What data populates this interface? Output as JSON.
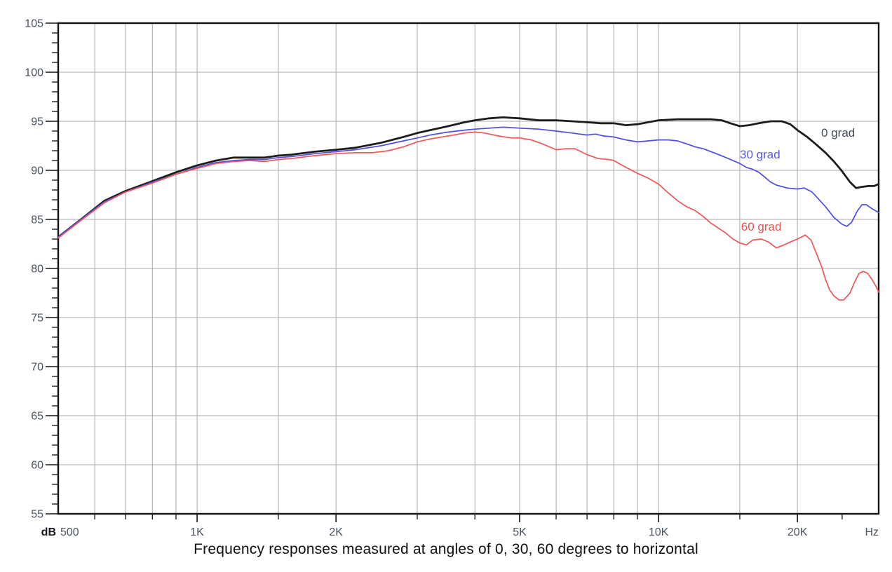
{
  "chart_data": {
    "type": "line",
    "title": "Frequency responses measured at angles of 0, 30, 60 degrees to horizontal",
    "x_axis": {
      "unit": "Hz",
      "scale": "log",
      "min": 500,
      "max": 30000,
      "labeled_ticks": [
        {
          "freq": 500,
          "label": "500"
        },
        {
          "freq": 1000,
          "label": "1K"
        },
        {
          "freq": 2000,
          "label": "2K"
        },
        {
          "freq": 5000,
          "label": "5K"
        },
        {
          "freq": 10000,
          "label": "10K"
        },
        {
          "freq": 20000,
          "label": "20K"
        }
      ],
      "grid_freqs": [
        600,
        700,
        800,
        900,
        1000,
        1500,
        2000,
        3000,
        4000,
        5000,
        6000,
        7000,
        8000,
        9000,
        10000,
        15000,
        20000
      ],
      "tick_only_freqs": [
        600,
        700,
        800,
        900,
        1500,
        3000,
        4000,
        6000,
        7000,
        8000,
        9000,
        15000,
        25000
      ]
    },
    "y_axis": {
      "unit": "dB",
      "min": 55,
      "max": 105,
      "major_step": 5,
      "minor_step": 1,
      "labels": [
        "105",
        "100",
        "95",
        "90",
        "85",
        "80",
        "75",
        "70",
        "65",
        "60",
        "55"
      ]
    },
    "grid": true,
    "legend_position": "inline-labels",
    "colors": {
      "grid": "#a8a8a8",
      "axis": "#121212",
      "tick_label": "#4a525e",
      "caption": "#101010"
    },
    "series": [
      {
        "name": "0 grad",
        "color": "#1c1c1c",
        "label_color": "#434b58",
        "stroke_width": 2.8,
        "label_anchor": {
          "freq": 24500,
          "db": 93.8
        },
        "points": [
          [
            500,
            83.2
          ],
          [
            560,
            85.0
          ],
          [
            630,
            86.9
          ],
          [
            700,
            87.9
          ],
          [
            800,
            88.9
          ],
          [
            900,
            89.8
          ],
          [
            1000,
            90.5
          ],
          [
            1100,
            91.0
          ],
          [
            1200,
            91.3
          ],
          [
            1300,
            91.3
          ],
          [
            1400,
            91.3
          ],
          [
            1500,
            91.5
          ],
          [
            1600,
            91.6
          ],
          [
            1800,
            91.9
          ],
          [
            2000,
            92.1
          ],
          [
            2200,
            92.3
          ],
          [
            2500,
            92.8
          ],
          [
            2800,
            93.4
          ],
          [
            3000,
            93.8
          ],
          [
            3200,
            94.1
          ],
          [
            3500,
            94.5
          ],
          [
            3800,
            94.9
          ],
          [
            4000,
            95.1
          ],
          [
            4300,
            95.3
          ],
          [
            4600,
            95.4
          ],
          [
            5000,
            95.3
          ],
          [
            5500,
            95.1
          ],
          [
            6000,
            95.1
          ],
          [
            6500,
            95.0
          ],
          [
            7000,
            94.9
          ],
          [
            7500,
            94.8
          ],
          [
            8000,
            94.8
          ],
          [
            8500,
            94.6
          ],
          [
            9000,
            94.7
          ],
          [
            9500,
            94.9
          ],
          [
            10000,
            95.1
          ],
          [
            11000,
            95.2
          ],
          [
            12000,
            95.2
          ],
          [
            13000,
            95.2
          ],
          [
            13700,
            95.1
          ],
          [
            14300,
            94.8
          ],
          [
            15000,
            94.5
          ],
          [
            15700,
            94.6
          ],
          [
            16500,
            94.8
          ],
          [
            17500,
            95.0
          ],
          [
            18500,
            95.0
          ],
          [
            19300,
            94.7
          ],
          [
            20000,
            94.1
          ],
          [
            21000,
            93.4
          ],
          [
            22000,
            92.6
          ],
          [
            23000,
            91.8
          ],
          [
            24000,
            90.9
          ],
          [
            25000,
            89.9
          ],
          [
            26000,
            88.8
          ],
          [
            26800,
            88.2
          ],
          [
            27500,
            88.3
          ],
          [
            28500,
            88.4
          ],
          [
            29300,
            88.4
          ],
          [
            30000,
            88.6
          ]
        ]
      },
      {
        "name": "30 grad",
        "color": "#4d4de6",
        "label_color": "#5b5be0",
        "stroke_width": 1.7,
        "label_anchor": {
          "freq": 16600,
          "db": 91.6
        },
        "points": [
          [
            500,
            83.2
          ],
          [
            560,
            85.0
          ],
          [
            630,
            86.8
          ],
          [
            700,
            87.8
          ],
          [
            800,
            88.8
          ],
          [
            900,
            89.6
          ],
          [
            1000,
            90.3
          ],
          [
            1100,
            90.8
          ],
          [
            1200,
            91.0
          ],
          [
            1300,
            91.1
          ],
          [
            1400,
            91.1
          ],
          [
            1500,
            91.3
          ],
          [
            1600,
            91.4
          ],
          [
            1800,
            91.7
          ],
          [
            2000,
            91.9
          ],
          [
            2200,
            92.1
          ],
          [
            2500,
            92.5
          ],
          [
            2800,
            93.0
          ],
          [
            3000,
            93.3
          ],
          [
            3200,
            93.6
          ],
          [
            3500,
            93.9
          ],
          [
            3800,
            94.1
          ],
          [
            4000,
            94.2
          ],
          [
            4300,
            94.3
          ],
          [
            4600,
            94.4
          ],
          [
            5000,
            94.3
          ],
          [
            5500,
            94.2
          ],
          [
            6000,
            94.0
          ],
          [
            6500,
            93.8
          ],
          [
            7000,
            93.6
          ],
          [
            7300,
            93.7
          ],
          [
            7600,
            93.5
          ],
          [
            8000,
            93.4
          ],
          [
            8500,
            93.1
          ],
          [
            9000,
            92.9
          ],
          [
            9500,
            93.0
          ],
          [
            10000,
            93.1
          ],
          [
            10500,
            93.1
          ],
          [
            11000,
            93.0
          ],
          [
            11500,
            92.7
          ],
          [
            12000,
            92.4
          ],
          [
            12500,
            92.2
          ],
          [
            13000,
            91.9
          ],
          [
            13500,
            91.6
          ],
          [
            14000,
            91.3
          ],
          [
            14500,
            91.0
          ],
          [
            15000,
            90.7
          ],
          [
            15500,
            90.3
          ],
          [
            16000,
            90.1
          ],
          [
            16500,
            89.8
          ],
          [
            17000,
            89.3
          ],
          [
            17500,
            88.8
          ],
          [
            18000,
            88.5
          ],
          [
            19000,
            88.2
          ],
          [
            20000,
            88.1
          ],
          [
            20700,
            88.2
          ],
          [
            21500,
            87.8
          ],
          [
            22000,
            87.3
          ],
          [
            23000,
            86.3
          ],
          [
            24000,
            85.2
          ],
          [
            25000,
            84.5
          ],
          [
            25600,
            84.3
          ],
          [
            26200,
            84.7
          ],
          [
            27000,
            85.9
          ],
          [
            27600,
            86.5
          ],
          [
            28200,
            86.5
          ],
          [
            29000,
            86.1
          ],
          [
            30000,
            85.7
          ]
        ]
      },
      {
        "name": "60 grad",
        "color": "#f05555",
        "label_color": "#ef5252",
        "stroke_width": 1.7,
        "label_anchor": {
          "freq": 16700,
          "db": 84.2
        },
        "points": [
          [
            500,
            83.1
          ],
          [
            560,
            84.9
          ],
          [
            630,
            86.7
          ],
          [
            700,
            87.8
          ],
          [
            800,
            88.7
          ],
          [
            900,
            89.6
          ],
          [
            1000,
            90.2
          ],
          [
            1100,
            90.7
          ],
          [
            1200,
            90.9
          ],
          [
            1300,
            91.0
          ],
          [
            1400,
            90.9
          ],
          [
            1500,
            91.1
          ],
          [
            1600,
            91.2
          ],
          [
            1800,
            91.5
          ],
          [
            2000,
            91.7
          ],
          [
            2200,
            91.8
          ],
          [
            2400,
            91.8
          ],
          [
            2600,
            92.0
          ],
          [
            2800,
            92.4
          ],
          [
            3000,
            92.9
          ],
          [
            3200,
            93.2
          ],
          [
            3500,
            93.5
          ],
          [
            3800,
            93.8
          ],
          [
            4000,
            93.9
          ],
          [
            4200,
            93.8
          ],
          [
            4500,
            93.5
          ],
          [
            4800,
            93.3
          ],
          [
            5000,
            93.3
          ],
          [
            5300,
            93.1
          ],
          [
            5600,
            92.7
          ],
          [
            6000,
            92.1
          ],
          [
            6300,
            92.2
          ],
          [
            6600,
            92.2
          ],
          [
            7000,
            91.6
          ],
          [
            7400,
            91.2
          ],
          [
            7800,
            91.1
          ],
          [
            8000,
            91.0
          ],
          [
            8500,
            90.3
          ],
          [
            9000,
            89.7
          ],
          [
            9500,
            89.2
          ],
          [
            10000,
            88.6
          ],
          [
            10500,
            87.7
          ],
          [
            11000,
            86.9
          ],
          [
            11500,
            86.3
          ],
          [
            12000,
            85.9
          ],
          [
            12500,
            85.3
          ],
          [
            13000,
            84.6
          ],
          [
            13500,
            84.1
          ],
          [
            14000,
            83.6
          ],
          [
            14500,
            83.0
          ],
          [
            15000,
            82.6
          ],
          [
            15500,
            82.4
          ],
          [
            16000,
            82.9
          ],
          [
            16700,
            83.0
          ],
          [
            17300,
            82.7
          ],
          [
            18000,
            82.1
          ],
          [
            18700,
            82.4
          ],
          [
            19300,
            82.7
          ],
          [
            20000,
            83.0
          ],
          [
            20800,
            83.4
          ],
          [
            21400,
            82.9
          ],
          [
            22000,
            81.5
          ],
          [
            22600,
            80.1
          ],
          [
            23000,
            78.9
          ],
          [
            23500,
            77.8
          ],
          [
            24000,
            77.2
          ],
          [
            24600,
            76.8
          ],
          [
            25200,
            76.8
          ],
          [
            26000,
            77.5
          ],
          [
            26600,
            78.6
          ],
          [
            27200,
            79.5
          ],
          [
            27800,
            79.7
          ],
          [
            28400,
            79.5
          ],
          [
            29000,
            78.9
          ],
          [
            29500,
            78.3
          ],
          [
            30000,
            77.6
          ]
        ]
      }
    ]
  }
}
